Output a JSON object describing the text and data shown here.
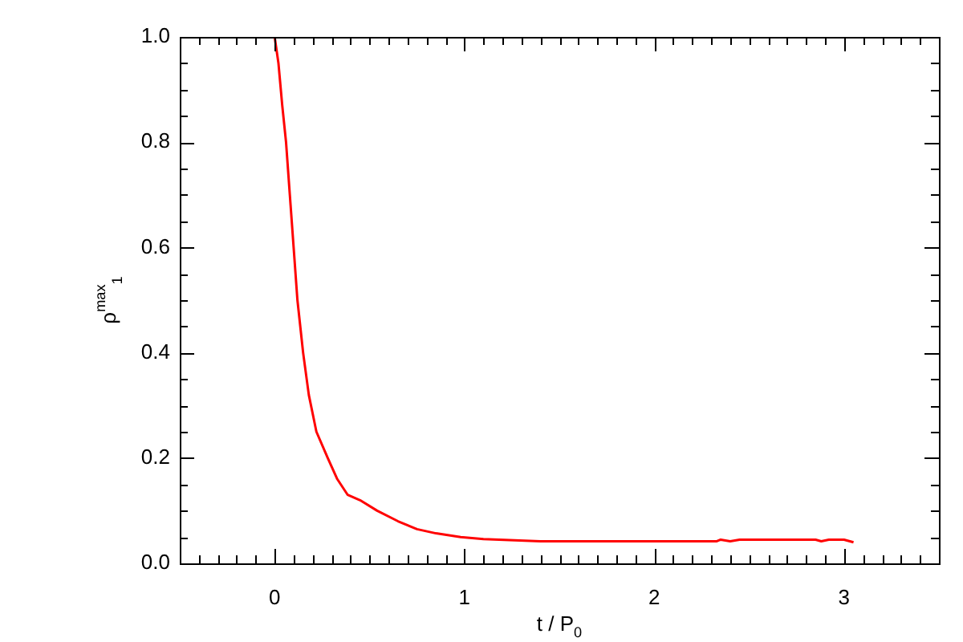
{
  "chart_data": {
    "type": "line",
    "xlabel": "t / P$_{0}$",
    "ylabel": "ρ$^{max}$$_{1}$",
    "x": [
      0,
      0.02,
      0.04,
      0.06,
      0.08,
      0.1,
      0.12,
      0.15,
      0.18,
      0.22,
      0.28,
      0.33,
      0.385,
      0.45,
      0.54,
      0.65,
      0.75,
      0.85,
      0.98,
      1.1,
      1.4,
      2.33,
      2.35,
      2.4,
      2.45,
      2.85,
      2.88,
      2.92,
      3.0,
      3.05
    ],
    "series": [
      {
        "color": "#ff0000",
        "values": [
          1.0,
          0.95,
          0.87,
          0.8,
          0.7,
          0.6,
          0.5,
          0.4,
          0.32,
          0.25,
          0.2,
          0.16,
          0.13,
          0.12,
          0.1,
          0.08,
          0.065,
          0.057,
          0.05,
          0.046,
          0.042,
          0.042,
          0.045,
          0.042,
          0.045,
          0.045,
          0.042,
          0.045,
          0.045,
          0.04
        ]
      }
    ],
    "xlim": [
      -0.5,
      3.5
    ],
    "ylim": [
      0,
      1
    ],
    "xticks": [
      {
        "value": -0.5,
        "label": null
      },
      {
        "value": -0.4,
        "label": null
      },
      {
        "value": -0.3,
        "label": null
      },
      {
        "value": -0.2,
        "label": null
      },
      {
        "value": -0.1,
        "label": null
      },
      0,
      {
        "value": 0.1,
        "label": null
      },
      {
        "value": 0.2,
        "label": null
      },
      {
        "value": 0.3,
        "label": null
      },
      {
        "value": 0.4,
        "label": null
      },
      {
        "value": 0.5,
        "label": null
      },
      {
        "value": 0.6,
        "label": null
      },
      {
        "value": 0.7,
        "label": null
      },
      {
        "value": 0.8,
        "label": null
      },
      {
        "value": 0.9,
        "label": null
      },
      1,
      {
        "value": 1.1,
        "label": null
      },
      {
        "value": 1.2,
        "label": null
      },
      {
        "value": 1.3,
        "label": null
      },
      {
        "value": 1.4,
        "label": null
      },
      {
        "value": 1.5,
        "label": null
      },
      {
        "value": 1.6,
        "label": null
      },
      {
        "value": 1.7,
        "label": null
      },
      {
        "value": 1.8,
        "label": null
      },
      {
        "value": 1.9,
        "label": null
      },
      2,
      {
        "value": 2.1,
        "label": null
      },
      {
        "value": 2.2,
        "label": null
      },
      {
        "value": 2.3,
        "label": null
      },
      {
        "value": 2.4,
        "label": null
      },
      {
        "value": 2.5,
        "label": null
      },
      {
        "value": 2.6,
        "label": null
      },
      {
        "value": 2.7,
        "label": null
      },
      {
        "value": 2.8,
        "label": null
      },
      {
        "value": 2.9,
        "label": null
      },
      3,
      {
        "value": 3.1,
        "label": null
      },
      {
        "value": 3.2,
        "label": null
      },
      {
        "value": 3.3,
        "label": null
      },
      {
        "value": 3.4,
        "label": null
      },
      {
        "value": 3.5,
        "label": null
      }
    ],
    "yticks": [
      {
        "value": 0,
        "label": "0.0"
      },
      {
        "value": 0.05,
        "label": null
      },
      {
        "value": 0.1,
        "label": null
      },
      {
        "value": 0.15,
        "label": null
      },
      {
        "value": 0.2,
        "label": "0.2"
      },
      {
        "value": 0.25,
        "label": null
      },
      {
        "value": 0.3,
        "label": null
      },
      {
        "value": 0.35,
        "label": null
      },
      {
        "value": 0.4,
        "label": "0.4"
      },
      {
        "value": 0.45,
        "label": null
      },
      {
        "value": 0.5,
        "label": null
      },
      {
        "value": 0.55,
        "label": null
      },
      {
        "value": 0.6,
        "label": "0.6"
      },
      {
        "value": 0.65,
        "label": null
      },
      {
        "value": 0.7,
        "label": null
      },
      {
        "value": 0.75,
        "label": null
      },
      {
        "value": 0.8,
        "label": "0.8"
      },
      {
        "value": 0.85,
        "label": null
      },
      {
        "value": 0.9,
        "label": null
      },
      {
        "value": 0.95,
        "label": null
      },
      {
        "value": 1,
        "label": "1.0"
      }
    ],
    "grid": false,
    "legend": false,
    "marker": "none",
    "line_style": "solid"
  }
}
